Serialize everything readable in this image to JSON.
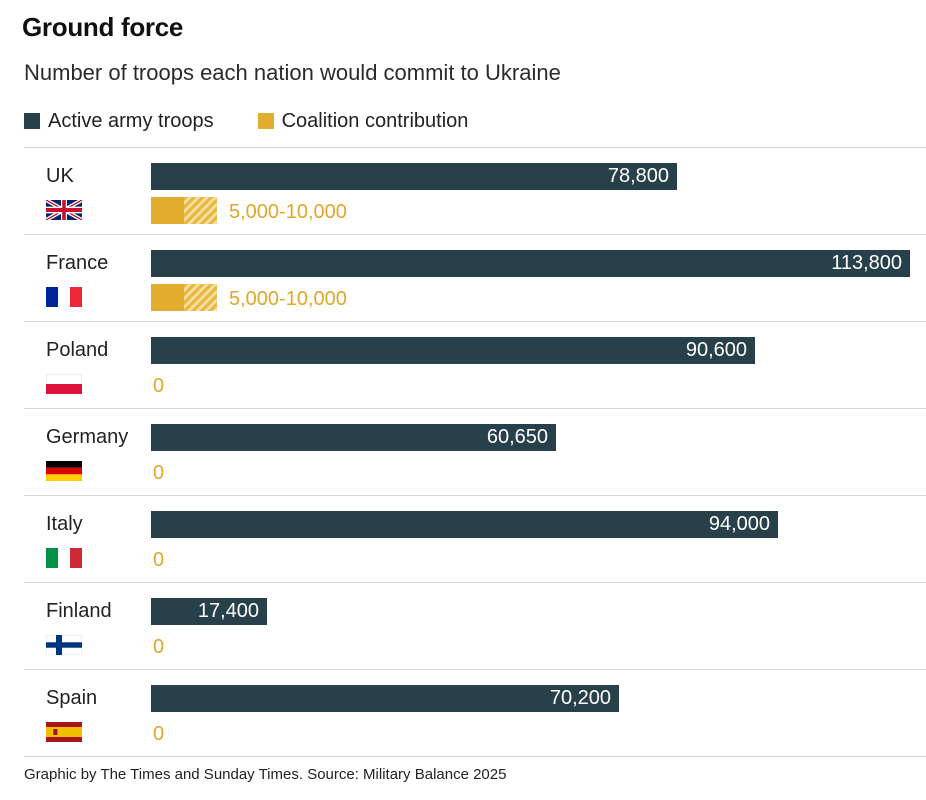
{
  "chart_data": {
    "type": "bar",
    "title": "Ground force",
    "subtitle": "Number of troops each nation would commit to Ukraine",
    "legend": [
      {
        "name": "Active army troops",
        "color": "#27404a"
      },
      {
        "name": "Coalition contribution",
        "color": "#e2ac2f"
      }
    ],
    "categories": [
      "UK",
      "France",
      "Poland",
      "Germany",
      "Italy",
      "Finland",
      "Spain"
    ],
    "series": [
      {
        "name": "Active army troops",
        "values": [
          78800,
          113800,
          90600,
          60650,
          94000,
          17400,
          70200
        ],
        "labels": [
          "78,800",
          "113,800",
          "90,600",
          "60,650",
          "94,000",
          "17,400",
          "70,200"
        ]
      },
      {
        "name": "Coalition contribution",
        "values": [
          [
            5000,
            10000
          ],
          [
            5000,
            10000
          ],
          0,
          0,
          0,
          0,
          0
        ],
        "labels": [
          "5,000-10,000",
          "5,000-10,000",
          "0",
          "0",
          "0",
          "0",
          "0"
        ]
      }
    ],
    "xlim": [
      0,
      113800
    ],
    "source": "Graphic by The Times and Sunday Times. Source: Military Balance 2025"
  }
}
